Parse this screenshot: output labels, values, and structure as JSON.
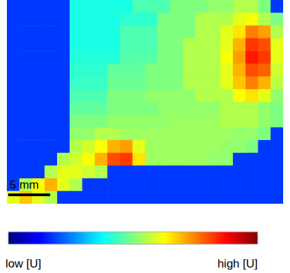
{
  "chart_data": {
    "type": "heatmap",
    "xlim": [
      0,
      33
    ],
    "ylim": [
      0,
      24
    ],
    "tick_labels": false,
    "grid": false,
    "color_range": [
      0,
      1
    ],
    "color_labels": [
      "low [U]",
      "high [U]"
    ],
    "scale_bar": {
      "label": "5 mm",
      "length": 5
    },
    "cells": [
      [
        0.18,
        0.18,
        0.18,
        0.18,
        0.18,
        0.4,
        0.4,
        0.4,
        0.4,
        0.4,
        0.45,
        0.45,
        0.45,
        0.5,
        0.5,
        0.5,
        0.52,
        0.52,
        0.55,
        0.55,
        0.5,
        0.18
      ],
      [
        0.18,
        0.18,
        0.18,
        0.18,
        0.18,
        0.4,
        0.4,
        0.4,
        0.4,
        0.42,
        0.42,
        0.42,
        0.5,
        0.5,
        0.5,
        0.55,
        0.55,
        0.55,
        0.6,
        0.62,
        0.55,
        0.5
      ],
      [
        0.18,
        0.18,
        0.18,
        0.18,
        0.18,
        0.4,
        0.4,
        0.4,
        0.4,
        0.45,
        0.45,
        0.45,
        0.5,
        0.5,
        0.5,
        0.55,
        0.55,
        0.6,
        0.65,
        0.75,
        0.72,
        0.55
      ],
      [
        0.18,
        0.18,
        0.18,
        0.18,
        0.18,
        0.4,
        0.4,
        0.4,
        0.4,
        0.45,
        0.45,
        0.45,
        0.5,
        0.5,
        0.55,
        0.55,
        0.55,
        0.6,
        0.7,
        0.82,
        0.8,
        0.6
      ],
      [
        0.18,
        0.18,
        0.18,
        0.18,
        0.18,
        0.41,
        0.41,
        0.41,
        0.41,
        0.46,
        0.46,
        0.46,
        0.5,
        0.5,
        0.55,
        0.55,
        0.55,
        0.62,
        0.72,
        0.85,
        0.82,
        0.6
      ],
      [
        0.18,
        0.18,
        0.18,
        0.18,
        0.18,
        0.42,
        0.42,
        0.42,
        0.47,
        0.47,
        0.47,
        0.5,
        0.5,
        0.5,
        0.55,
        0.55,
        0.55,
        0.6,
        0.7,
        0.8,
        0.78,
        0.58
      ],
      [
        0.18,
        0.18,
        0.18,
        0.18,
        0.18,
        0.43,
        0.43,
        0.43,
        0.48,
        0.48,
        0.48,
        0.5,
        0.5,
        0.5,
        0.55,
        0.55,
        0.55,
        0.6,
        0.68,
        0.75,
        0.7,
        0.56
      ],
      [
        0.18,
        0.18,
        0.18,
        0.18,
        0.18,
        0.45,
        0.45,
        0.45,
        0.5,
        0.5,
        0.5,
        0.52,
        0.52,
        0.52,
        0.52,
        0.55,
        0.55,
        0.55,
        0.62,
        0.65,
        0.6,
        0.52
      ],
      [
        0.18,
        0.18,
        0.18,
        0.18,
        0.18,
        0.47,
        0.47,
        0.47,
        0.5,
        0.5,
        0.5,
        0.5,
        0.52,
        0.52,
        0.52,
        0.52,
        0.52,
        0.55,
        0.55,
        0.55,
        0.52,
        0.5
      ],
      [
        0.18,
        0.18,
        0.18,
        0.18,
        0.18,
        0.5,
        0.5,
        0.5,
        0.52,
        0.52,
        0.52,
        0.52,
        0.52,
        0.53,
        0.53,
        0.53,
        0.53,
        0.55,
        0.55,
        0.55,
        0.52,
        0.5
      ],
      [
        0.18,
        0.18,
        0.18,
        0.18,
        0.18,
        0.52,
        0.52,
        0.55,
        0.55,
        0.53,
        0.53,
        0.53,
        0.53,
        0.53,
        0.53,
        0.53,
        0.53,
        0.53,
        0.52,
        0.52,
        0.5,
        0.18
      ],
      [
        0.18,
        0.18,
        0.18,
        0.18,
        0.18,
        0.55,
        0.58,
        0.62,
        0.7,
        0.72,
        0.6,
        0.53,
        0.53,
        0.53,
        0.53,
        0.53,
        0.53,
        0.52,
        0.52,
        0.5,
        0.18,
        0.18
      ],
      [
        0.18,
        0.18,
        0.18,
        0.18,
        0.55,
        0.58,
        0.62,
        0.7,
        0.8,
        0.82,
        0.65,
        0.53,
        0.53,
        0.53,
        0.53,
        0.53,
        0.52,
        0.52,
        0.18,
        0.18,
        0.18,
        0.18
      ],
      [
        0.18,
        0.18,
        0.18,
        0.55,
        0.6,
        0.6,
        0.58,
        0.55,
        0.18,
        0.18,
        0.18,
        0.18,
        0.18,
        0.18,
        0.18,
        0.18,
        0.18,
        0.18,
        0.18,
        0.18,
        0.18,
        0.18
      ],
      [
        0.18,
        0.55,
        0.62,
        0.7,
        0.6,
        0.55,
        0.18,
        0.18,
        0.18,
        0.18,
        0.18,
        0.18,
        0.18,
        0.18,
        0.18,
        0.18,
        0.18,
        0.18,
        0.18,
        0.18,
        0.18,
        0.18
      ],
      [
        0.6,
        0.68,
        0.6,
        0.55,
        0.18,
        0.18,
        0.18,
        0.18,
        0.18,
        0.18,
        0.18,
        0.18,
        0.18,
        0.18,
        0.18,
        0.18,
        0.18,
        0.18,
        0.18,
        0.18,
        0.18,
        0.18
      ]
    ]
  }
}
